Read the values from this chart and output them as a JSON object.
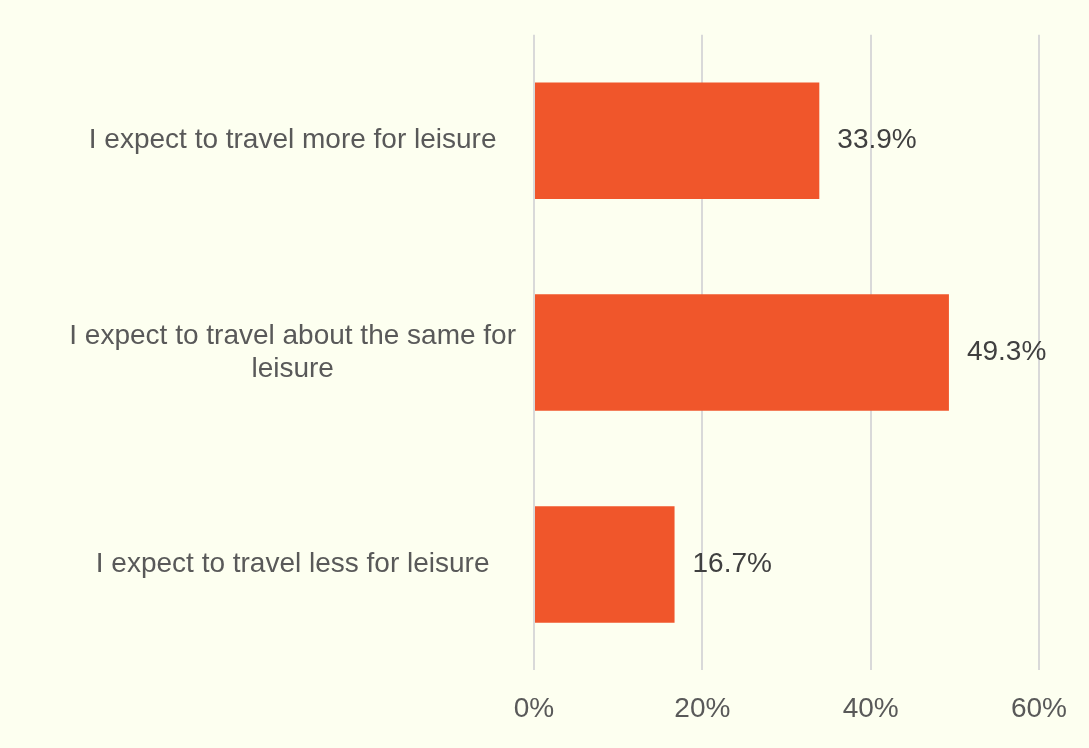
{
  "chart_data": {
    "type": "bar",
    "orientation": "horizontal",
    "categories": [
      "I expect to travel more for leisure",
      "I expect to travel about the same for leisure",
      "I expect to travel less for leisure"
    ],
    "values": [
      33.9,
      49.3,
      16.7
    ],
    "color": "#f0562b",
    "value_labels": [
      "33.9%",
      "49.3%",
      "16.7%"
    ],
    "xlim": [
      0,
      60
    ],
    "xticks": [
      {
        "value": 0,
        "label": "0%"
      },
      {
        "value": 20,
        "label": "20%"
      },
      {
        "value": 40,
        "label": "40%"
      },
      {
        "value": 60,
        "label": "60%"
      }
    ],
    "grid": "x",
    "legend": false
  }
}
